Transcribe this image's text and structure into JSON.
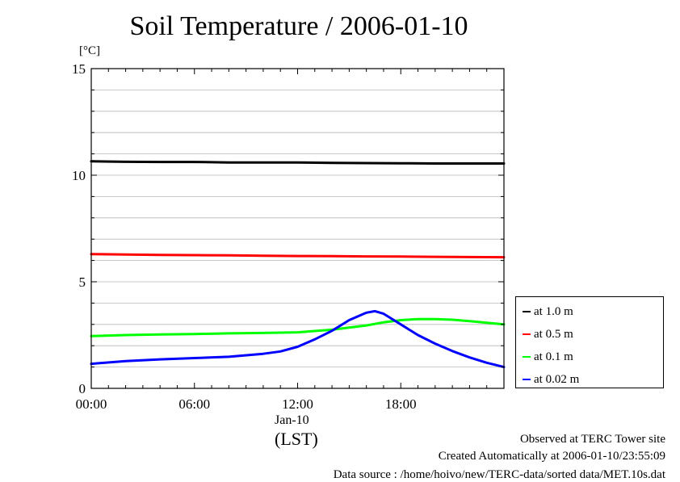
{
  "chart_data": {
    "type": "line",
    "title": "Soil Temperature / 2006-01-10",
    "ylabel": "[°C]",
    "ylim": [
      0,
      15
    ],
    "yticks": [
      "0",
      "5",
      "10",
      "15"
    ],
    "xlim": [
      0,
      24
    ],
    "xticks": [
      {
        "hour": 0,
        "label": "00:00"
      },
      {
        "hour": 6,
        "label": "06:00"
      },
      {
        "hour": 12,
        "label": "12:00"
      },
      {
        "hour": 18,
        "label": "18:00"
      }
    ],
    "x_sublabel": "Jan-10",
    "x_unit": "(LST)",
    "grid": true,
    "legend_position": "right",
    "series": [
      {
        "name": "at 1.0 m",
        "color": "#000000",
        "x": [
          0,
          2,
          4,
          6,
          8,
          10,
          12,
          14,
          16,
          18,
          20,
          22,
          24
        ],
        "y": [
          10.65,
          10.63,
          10.62,
          10.62,
          10.6,
          10.6,
          10.6,
          10.58,
          10.57,
          10.56,
          10.55,
          10.55,
          10.55
        ]
      },
      {
        "name": "at 0.5 m",
        "color": "#ff0000",
        "x": [
          0,
          2,
          4,
          6,
          8,
          10,
          12,
          14,
          16,
          18,
          20,
          22,
          24
        ],
        "y": [
          6.3,
          6.28,
          6.26,
          6.25,
          6.24,
          6.22,
          6.21,
          6.2,
          6.19,
          6.18,
          6.17,
          6.16,
          6.15
        ]
      },
      {
        "name": "at 0.1 m",
        "color": "#00ff00",
        "x": [
          0,
          2,
          4,
          6,
          8,
          10,
          12,
          14,
          15,
          16,
          17,
          18,
          19,
          20,
          21,
          22,
          23,
          24
        ],
        "y": [
          2.45,
          2.5,
          2.53,
          2.55,
          2.58,
          2.6,
          2.63,
          2.75,
          2.85,
          2.95,
          3.1,
          3.2,
          3.25,
          3.25,
          3.22,
          3.15,
          3.08,
          3.0
        ]
      },
      {
        "name": "at 0.02 m",
        "color": "#0000ff",
        "x": [
          0,
          2,
          4,
          6,
          8,
          10,
          11,
          12,
          13,
          14,
          15,
          16,
          16.5,
          17,
          18,
          19,
          20,
          21,
          22,
          23,
          24
        ],
        "y": [
          1.15,
          1.28,
          1.36,
          1.42,
          1.48,
          1.62,
          1.73,
          1.95,
          2.3,
          2.7,
          3.2,
          3.55,
          3.62,
          3.5,
          3.0,
          2.5,
          2.1,
          1.75,
          1.45,
          1.2,
          1.0
        ]
      }
    ]
  },
  "footer": {
    "line1": "Observed at TERC Tower site",
    "line2": "Created Automatically at 2006-01-10/23:55:09",
    "line3": "Data source : /home/hoivo/new/TERC-data/sorted  data/MET.10s.dat"
  }
}
